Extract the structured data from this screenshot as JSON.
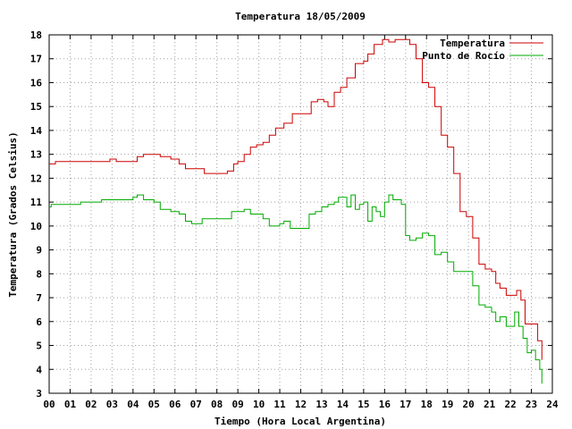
{
  "chart_data": {
    "type": "line",
    "title": "Temperatura 18/05/2009",
    "xlabel": "Tiempo (Hora Local Argentina)",
    "ylabel": "Temperatura (Grados Celsius)",
    "xlim": [
      0,
      24
    ],
    "ylim": [
      3,
      18
    ],
    "x_ticks": [
      0,
      1,
      2,
      3,
      4,
      5,
      6,
      7,
      8,
      9,
      10,
      11,
      12,
      13,
      14,
      15,
      16,
      17,
      18,
      19,
      20,
      21,
      22,
      23,
      24
    ],
    "x_tick_labels": [
      "00",
      "01",
      "02",
      "03",
      "04",
      "05",
      "06",
      "07",
      "08",
      "09",
      "10",
      "11",
      "12",
      "13",
      "14",
      "15",
      "16",
      "17",
      "18",
      "19",
      "20",
      "21",
      "22",
      "23",
      "24"
    ],
    "y_ticks": [
      3,
      4,
      5,
      6,
      7,
      8,
      9,
      10,
      11,
      12,
      13,
      14,
      15,
      16,
      17,
      18
    ],
    "y_tick_labels": [
      "3",
      "4",
      "5",
      "6",
      "7",
      "8",
      "9",
      "10",
      "11",
      "12",
      "13",
      "14",
      "15",
      "16",
      "17",
      "18"
    ],
    "grid": true,
    "legend_position": "top-right",
    "series": [
      {
        "name": "Temperatura",
        "color": "#cc0000",
        "x": [
          0.0,
          0.1,
          0.3,
          1.0,
          2.0,
          2.5,
          2.9,
          3.2,
          3.8,
          4.2,
          4.5,
          5.0,
          5.3,
          5.8,
          6.2,
          6.5,
          7.0,
          7.4,
          7.8,
          8.2,
          8.5,
          8.8,
          9.0,
          9.3,
          9.6,
          9.9,
          10.2,
          10.5,
          10.8,
          11.2,
          11.6,
          11.9,
          12.2,
          12.5,
          12.8,
          13.0,
          13.1,
          13.3,
          13.6,
          13.9,
          14.2,
          14.6,
          15.0,
          15.2,
          15.5,
          15.9,
          16.2,
          16.5,
          16.9,
          17.2,
          17.5,
          17.8,
          18.1,
          18.4,
          18.7,
          19.0,
          19.3,
          19.6,
          19.9,
          20.2,
          20.5,
          20.8,
          21.1,
          21.3,
          21.5,
          21.8,
          22.0,
          22.3,
          22.5,
          22.7,
          22.9,
          23.1,
          23.3,
          23.5
        ],
        "y": [
          12.6,
          12.6,
          12.7,
          12.7,
          12.7,
          12.7,
          12.8,
          12.7,
          12.7,
          12.9,
          13.0,
          13.0,
          12.9,
          12.8,
          12.6,
          12.4,
          12.4,
          12.2,
          12.2,
          12.2,
          12.3,
          12.6,
          12.7,
          13.0,
          13.3,
          13.4,
          13.5,
          13.8,
          14.1,
          14.3,
          14.7,
          14.7,
          14.7,
          15.2,
          15.3,
          15.3,
          15.2,
          15.0,
          15.6,
          15.8,
          16.2,
          16.8,
          16.9,
          17.2,
          17.6,
          17.8,
          17.7,
          17.8,
          17.8,
          17.6,
          17.0,
          16.0,
          15.8,
          15.0,
          13.8,
          13.3,
          12.2,
          10.6,
          10.4,
          9.5,
          8.4,
          8.2,
          8.1,
          7.6,
          7.4,
          7.1,
          7.1,
          7.3,
          6.9,
          5.9,
          5.9,
          5.9,
          5.2,
          4.4
        ]
      },
      {
        "name": "Punto de Rocío",
        "color": "#00aa00",
        "x": [
          0.0,
          0.1,
          0.3,
          1.0,
          1.5,
          2.0,
          2.5,
          3.0,
          3.5,
          4.0,
          4.2,
          4.5,
          4.8,
          5.0,
          5.3,
          5.8,
          6.2,
          6.5,
          6.8,
          7.0,
          7.3,
          7.6,
          8.0,
          8.4,
          8.7,
          9.0,
          9.3,
          9.6,
          9.9,
          10.2,
          10.5,
          10.8,
          11.0,
          11.2,
          11.5,
          11.8,
          12.1,
          12.4,
          12.7,
          13.0,
          13.3,
          13.6,
          13.8,
          14.0,
          14.2,
          14.4,
          14.6,
          14.8,
          15.0,
          15.2,
          15.4,
          15.6,
          15.8,
          16.0,
          16.2,
          16.4,
          16.6,
          16.8,
          17.0,
          17.2,
          17.5,
          17.8,
          18.1,
          18.4,
          18.7,
          19.0,
          19.3,
          19.6,
          19.9,
          20.2,
          20.5,
          20.8,
          21.1,
          21.3,
          21.5,
          21.8,
          22.0,
          22.2,
          22.4,
          22.6,
          22.8,
          23.0,
          23.2,
          23.4,
          23.5
        ],
        "y": [
          10.8,
          10.9,
          10.9,
          10.9,
          11.0,
          11.0,
          11.1,
          11.1,
          11.1,
          11.2,
          11.3,
          11.1,
          11.1,
          11.0,
          10.7,
          10.6,
          10.5,
          10.2,
          10.1,
          10.1,
          10.3,
          10.3,
          10.3,
          10.3,
          10.6,
          10.6,
          10.7,
          10.5,
          10.5,
          10.3,
          10.0,
          10.0,
          10.1,
          10.2,
          9.9,
          9.9,
          9.9,
          10.5,
          10.6,
          10.8,
          10.9,
          11.0,
          11.2,
          11.2,
          10.8,
          11.3,
          10.7,
          10.9,
          11.0,
          10.2,
          10.8,
          10.6,
          10.4,
          11.0,
          11.3,
          11.1,
          11.1,
          10.9,
          9.6,
          9.4,
          9.5,
          9.7,
          9.6,
          8.8,
          8.9,
          8.5,
          8.1,
          8.1,
          8.1,
          7.5,
          6.7,
          6.6,
          6.4,
          6.0,
          6.2,
          5.8,
          5.8,
          6.4,
          5.8,
          5.3,
          4.7,
          4.8,
          4.4,
          4.0,
          3.4
        ]
      }
    ]
  }
}
